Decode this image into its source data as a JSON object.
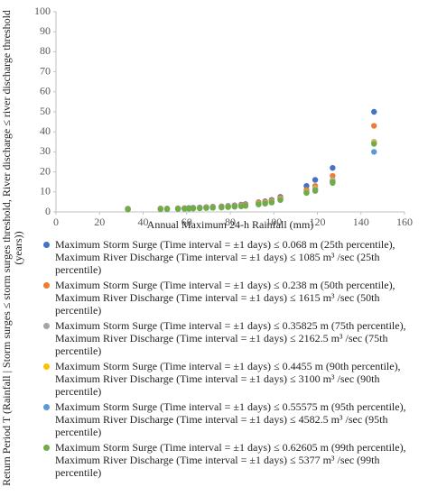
{
  "chart_data": {
    "type": "scatter",
    "y_label": "Return Period T (Rainfall | Storm surges ≤ storm surges threshold, River discharge ≤ river discharge threshold (years))",
    "x_label": "Annual Maximum 24-h Rainfall (mm)",
    "x": [
      33,
      48,
      51,
      56,
      59,
      61,
      63,
      66,
      69,
      72,
      76,
      79,
      82,
      85,
      87,
      93,
      96,
      99,
      103,
      115,
      119,
      127,
      146
    ],
    "series": [
      {
        "name": "Maximum Storm Surge  (Time interval = ±1 days) ≤ 0.068 m (25th percentile), Maximum River Discharge  (Time interval = ±1 days) ≤ 1085 m³  /sec (25th percentile)",
        "color": "#4472c4",
        "values": [
          1.6,
          1.7,
          1.7,
          1.8,
          1.9,
          2.0,
          2.1,
          2.2,
          2.4,
          2.6,
          2.8,
          3.0,
          3.3,
          3.6,
          3.9,
          4.8,
          5.3,
          6.0,
          7.5,
          13,
          16,
          22,
          50
        ]
      },
      {
        "name": "Maximum Storm Surge  (Time interval = ±1 days) ≤ 0.238 m (50th percentile), Maximum River Discharge  (Time interval = ±1 days) ≤ 1615 m³  /sec (50th percentile)",
        "color": "#ed7d31",
        "values": [
          1.5,
          1.6,
          1.6,
          1.7,
          1.8,
          1.9,
          2.0,
          2.1,
          2.3,
          2.4,
          2.6,
          2.8,
          3.1,
          3.4,
          3.6,
          4.5,
          5.0,
          5.6,
          7.0,
          11,
          13,
          18,
          43
        ]
      },
      {
        "name": "Maximum Storm Surge  (Time interval = ±1 days) ≤ 0.35825 m (75th percentile), Maximum River Discharge  (Time interval = ±1 days) ≤ 2162.5 m³  /sec (75th percentile)",
        "color": "#a5a5a5",
        "values": [
          1.4,
          1.5,
          1.5,
          1.6,
          1.7,
          1.8,
          1.9,
          2.0,
          2.1,
          2.3,
          2.4,
          2.6,
          2.8,
          3.1,
          3.3,
          4.1,
          4.5,
          5.1,
          6.5,
          10,
          12,
          16,
          35
        ]
      },
      {
        "name": "Maximum Storm Surge  (Time interval = ±1 days) ≤ 0.4455 m (90th percentile), Maximum River Discharge  (Time interval = ±1 days) ≤ 3100 m³  /sec (90th percentile)",
        "color": "#ffc000",
        "values": [
          1.4,
          1.5,
          1.5,
          1.6,
          1.7,
          1.7,
          1.8,
          1.9,
          2.1,
          2.2,
          2.4,
          2.6,
          2.8,
          3.0,
          3.2,
          4.0,
          4.4,
          5.0,
          6.3,
          9.8,
          11.5,
          15.5,
          34.5
        ]
      },
      {
        "name": "Maximum Storm Surge  (Time interval = ±1 days) ≤ 0.55575 m (95th percentile), Maximum River Discharge  (Time interval = ±1 days) ≤ 4582.5 m³  /sec (95th percentile)",
        "color": "#5b9bd5",
        "values": [
          1.3,
          1.4,
          1.4,
          1.5,
          1.6,
          1.7,
          1.8,
          1.9,
          2.0,
          2.1,
          2.3,
          2.5,
          2.7,
          2.9,
          3.1,
          3.8,
          4.2,
          4.8,
          6.0,
          9.6,
          11,
          15,
          30
        ]
      },
      {
        "name": "Maximum Storm Surge  (Time interval = ±1 days) ≤ 0.62605 m (99th percentile), Maximum River Discharge  (Time interval = ±1 days) ≤ 5377 m³  /sec (99th percentile)",
        "color": "#70ad47",
        "values": [
          1.3,
          1.4,
          1.4,
          1.5,
          1.6,
          1.6,
          1.7,
          1.8,
          2.0,
          2.1,
          2.2,
          2.4,
          2.6,
          2.8,
          3.0,
          3.8,
          4.2,
          4.7,
          6.0,
          9.5,
          10.5,
          14.5,
          34
        ]
      }
    ],
    "xlim": [
      0,
      160
    ],
    "xticks": [
      0,
      20,
      40,
      60,
      80,
      100,
      120,
      140,
      160
    ],
    "ylim": [
      0,
      100
    ],
    "yticks": [
      0,
      10,
      20,
      30,
      40,
      50,
      60,
      70,
      80,
      90,
      100
    ],
    "grid": false
  }
}
